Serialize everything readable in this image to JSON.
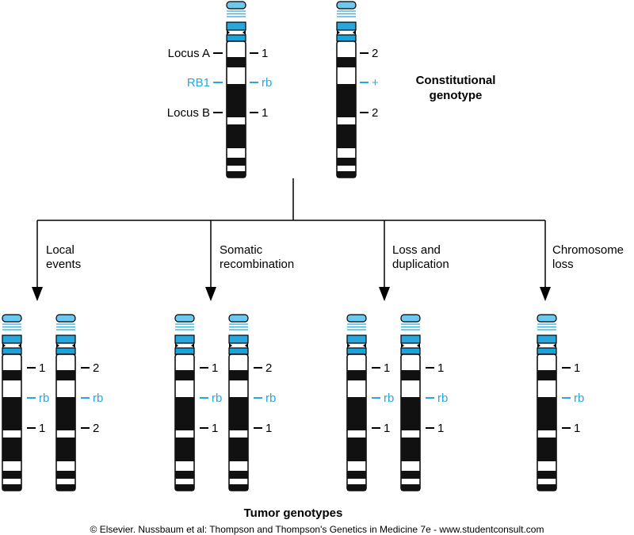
{
  "colors": {
    "accent": "#29a6dc",
    "centromere": "#1aa4dc",
    "band": "#111111",
    "line": "#000000"
  },
  "constitutional": {
    "title_line1": "Constitutional",
    "title_line2": "genotype",
    "locus_labels": {
      "a": "Locus A",
      "rb1": "RB1",
      "b": "Locus B"
    },
    "chrom1": {
      "a": "1",
      "rb": "rb",
      "b": "1"
    },
    "chrom2": {
      "a": "2",
      "rb": "+",
      "b": "2"
    }
  },
  "branches": [
    {
      "label_line1": "Local",
      "label_line2": "events",
      "chromosomes": [
        {
          "a": "1",
          "rb": "rb",
          "b": "1"
        },
        {
          "a": "2",
          "rb": "rb",
          "b": "2"
        }
      ]
    },
    {
      "label_line1": "Somatic",
      "label_line2": "recombination",
      "chromosomes": [
        {
          "a": "1",
          "rb": "rb",
          "b": "1"
        },
        {
          "a": "2",
          "rb": "rb",
          "b": "1"
        }
      ]
    },
    {
      "label_line1": "Loss and",
      "label_line2": "duplication",
      "chromosomes": [
        {
          "a": "1",
          "rb": "rb",
          "b": "1"
        },
        {
          "a": "1",
          "rb": "rb",
          "b": "1"
        }
      ]
    },
    {
      "label_line1": "Chromosome",
      "label_line2": "loss",
      "chromosomes": [
        {
          "a": "1",
          "rb": "rb",
          "b": "1"
        }
      ]
    }
  ],
  "tumor_title": "Tumor genotypes",
  "credit": "© Elsevier. Nussbaum et al: Thompson and Thompson's Genetics in Medicine 7e - www.studentconsult.com"
}
